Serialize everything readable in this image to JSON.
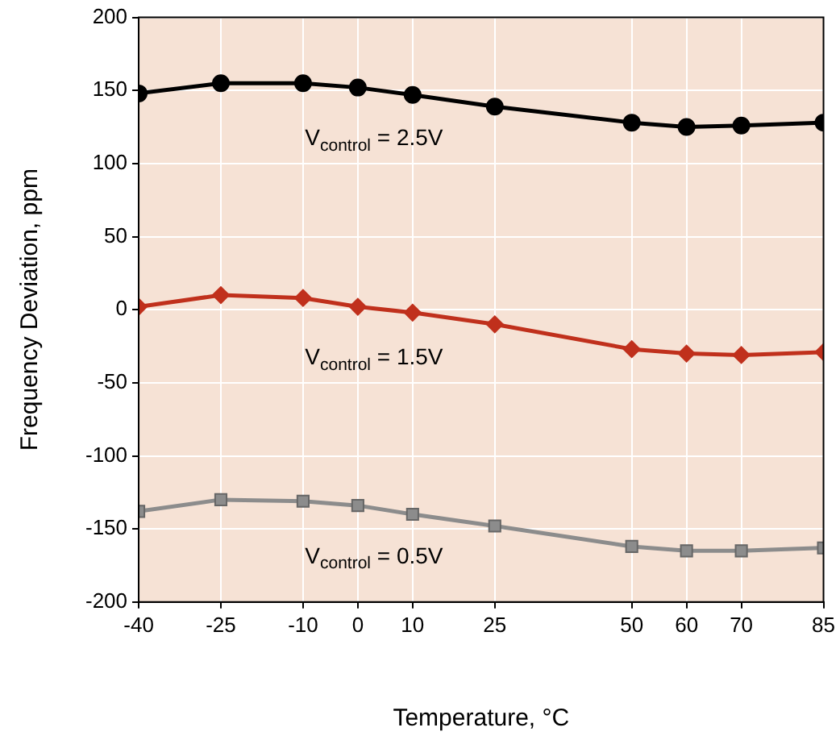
{
  "chart_data": {
    "type": "line",
    "xlabel": "Temperature, °C",
    "ylabel": "Frequency Deviation, ppm",
    "x": [
      -40,
      -25,
      -10,
      0,
      10,
      25,
      50,
      60,
      70,
      85
    ],
    "series": [
      {
        "name": "V$_{control}$ = 2.5V",
        "color": "#000000",
        "marker": "circle",
        "values": [
          148,
          155,
          155,
          152,
          147,
          139,
          128,
          125,
          126,
          128
        ]
      },
      {
        "name": "V$_{control}$ = 1.5V",
        "color": "#c0301c",
        "marker": "diamond",
        "values": [
          2,
          10,
          8,
          2,
          -2,
          -10,
          -27,
          -30,
          -31,
          -29
        ]
      },
      {
        "name": "V$_{control}$ = 0.5V",
        "color": "#8c8c8c",
        "marker": "square",
        "values": [
          -138,
          -130,
          -131,
          -134,
          -140,
          -148,
          -162,
          -165,
          -165,
          -163
        ]
      }
    ],
    "xlim": [
      -40,
      85
    ],
    "xticks": [
      -40,
      -25,
      -10,
      0,
      10,
      25,
      50,
      60,
      70,
      85
    ],
    "ylim": [
      -200,
      200
    ],
    "yticks": [
      -200,
      -150,
      -100,
      -50,
      0,
      50,
      100,
      150,
      200
    ],
    "grid": true,
    "line_style": "solid"
  }
}
